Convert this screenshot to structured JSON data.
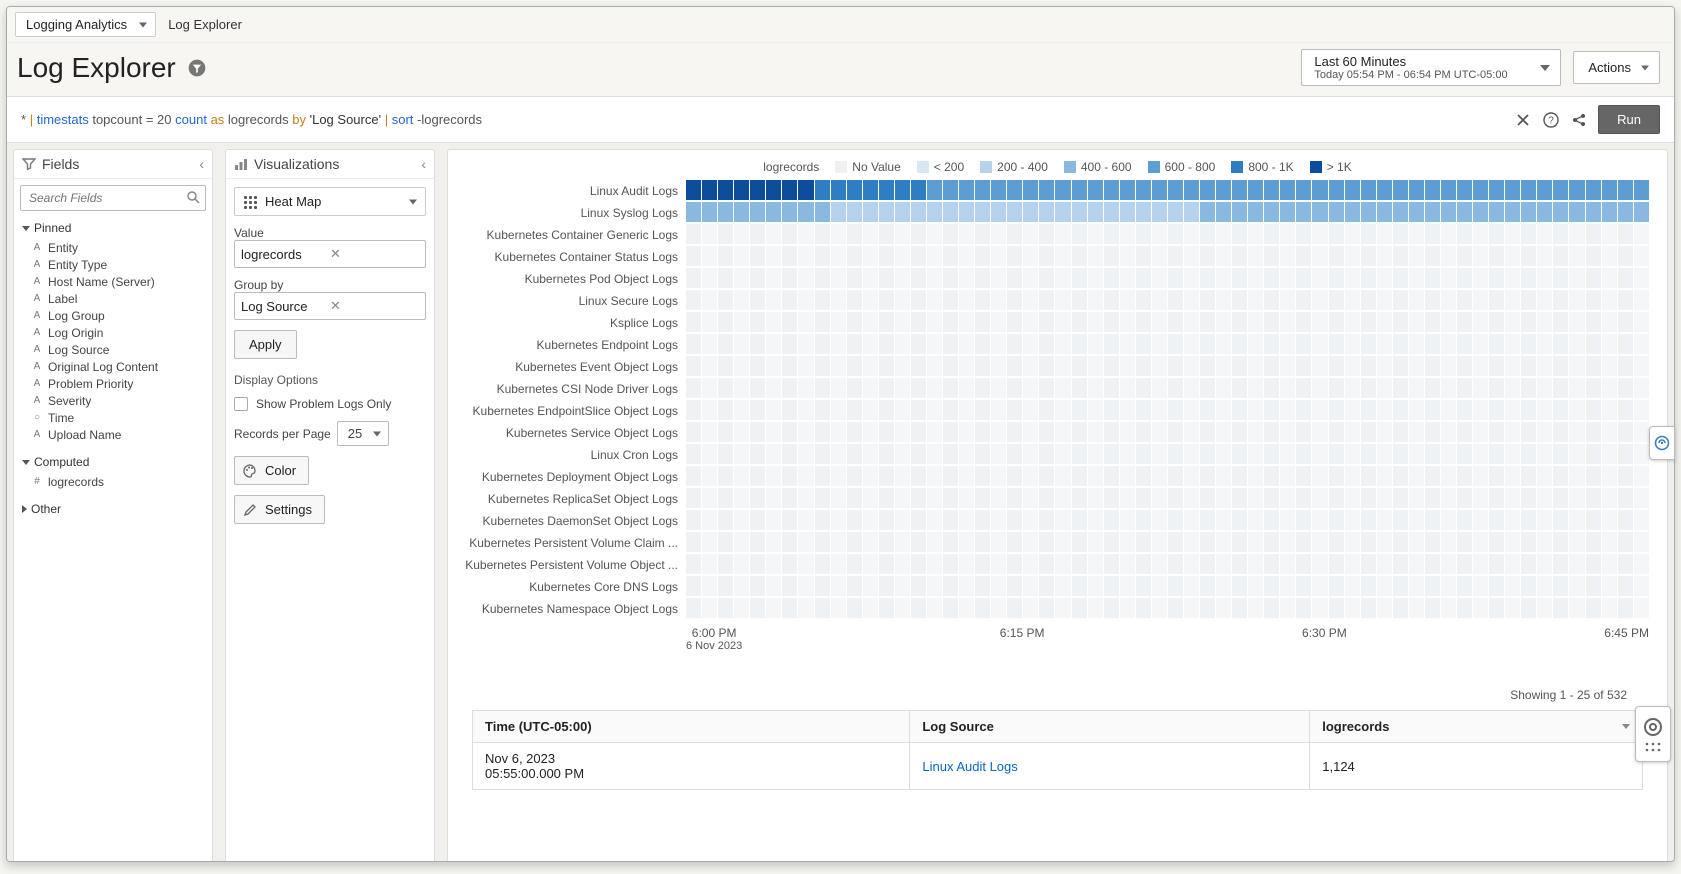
{
  "nav": {
    "selector": "Logging Analytics",
    "breadcrumb": "Log Explorer"
  },
  "header": {
    "title": "Log Explorer",
    "time_label": "Last 60 Minutes",
    "time_sub": "Today 05:54 PM - 06:54 PM UTC-05:00",
    "actions_btn": "Actions",
    "run": "Run"
  },
  "query": {
    "star": "*",
    "pipe": "|",
    "cmd1": "timestats",
    "arg1": "topcount = 20",
    "fn": "count",
    "as": "as",
    "alias": "logrecords",
    "by": "by",
    "field": "'Log Source'",
    "cmd2": "sort",
    "arg2": "-logrecords"
  },
  "fields": {
    "panel_title": "Fields",
    "search_placeholder": "Search Fields",
    "groups": {
      "pinned": {
        "label": "Pinned",
        "items": [
          {
            "k": "A",
            "l": "Entity"
          },
          {
            "k": "A",
            "l": "Entity Type"
          },
          {
            "k": "A",
            "l": "Host Name (Server)"
          },
          {
            "k": "A",
            "l": "Label"
          },
          {
            "k": "A",
            "l": "Log Group"
          },
          {
            "k": "A",
            "l": "Log Origin"
          },
          {
            "k": "A",
            "l": "Log Source"
          },
          {
            "k": "A",
            "l": "Original Log Content"
          },
          {
            "k": "A",
            "l": "Problem Priority"
          },
          {
            "k": "A",
            "l": "Severity"
          },
          {
            "k": "○",
            "l": "Time"
          },
          {
            "k": "A",
            "l": "Upload Name"
          }
        ]
      },
      "computed": {
        "label": "Computed",
        "items": [
          {
            "k": "#",
            "l": "logrecords"
          }
        ]
      },
      "other": {
        "label": "Other"
      }
    }
  },
  "viz": {
    "panel_title": "Visualizations",
    "type": "Heat Map",
    "value_label": "Value",
    "value": "logrecords",
    "group_label": "Group by",
    "group": "Log Source",
    "apply": "Apply",
    "display_options": "Display Options",
    "show_problem": "Show Problem Logs Only",
    "rpp_label": "Records per Page",
    "rpp_value": "25",
    "color_btn": "Color",
    "settings_btn": "Settings"
  },
  "chart": {
    "legend_title": "logrecords",
    "legend": [
      {
        "l": "No Value",
        "c": "#f0f0f0"
      },
      {
        "l": "< 200",
        "c": "#d7e7f4"
      },
      {
        "l": "200 - 400",
        "c": "#b5d3ec"
      },
      {
        "l": "400 - 600",
        "c": "#8ab9df"
      },
      {
        "l": "600 - 800",
        "c": "#5d9ed2"
      },
      {
        "l": "800 - 1K",
        "c": "#2f7ec1"
      },
      {
        "l": "> 1K",
        "c": "#0b4f9c"
      }
    ],
    "empty_color": "#eef2f4",
    "n_cols": 60,
    "rows": [
      {
        "label": "Linux Audit Logs",
        "cells": [
          6,
          6,
          6,
          6,
          6,
          6,
          6,
          6,
          5,
          5,
          5,
          5,
          5,
          5,
          5,
          4,
          4,
          4,
          4,
          4,
          4,
          4,
          4,
          4,
          4,
          4,
          4,
          4,
          4,
          4,
          4,
          4,
          4,
          4,
          4,
          4,
          4,
          4,
          4,
          4,
          4,
          4,
          4,
          4,
          4,
          4,
          4,
          4,
          4,
          4,
          4,
          4,
          4,
          4,
          4,
          4,
          4,
          4,
          4,
          4
        ]
      },
      {
        "label": "Linux Syslog Logs",
        "cells": [
          3,
          3,
          3,
          3,
          3,
          3,
          3,
          3,
          3,
          2,
          2,
          2,
          2,
          2,
          2,
          2,
          2,
          2,
          2,
          2,
          2,
          2,
          2,
          2,
          2,
          2,
          2,
          2,
          2,
          2,
          2,
          2,
          3,
          3,
          3,
          3,
          3,
          3,
          3,
          3,
          3,
          3,
          3,
          3,
          3,
          3,
          3,
          3,
          3,
          3,
          3,
          3,
          3,
          3,
          3,
          3,
          3,
          3,
          3,
          3
        ]
      },
      {
        "label": "Kubernetes Container Generic Logs",
        "cells": null
      },
      {
        "label": "Kubernetes Container Status Logs",
        "cells": null
      },
      {
        "label": "Kubernetes Pod Object Logs",
        "cells": null
      },
      {
        "label": "Linux Secure Logs",
        "cells": null
      },
      {
        "label": "Ksplice Logs",
        "cells": null
      },
      {
        "label": "Kubernetes Endpoint Logs",
        "cells": null
      },
      {
        "label": "Kubernetes Event Object Logs",
        "cells": null
      },
      {
        "label": "Kubernetes CSI Node Driver Logs",
        "cells": null
      },
      {
        "label": "Kubernetes EndpointSlice Object Logs",
        "cells": null
      },
      {
        "label": "Kubernetes Service Object Logs",
        "cells": null
      },
      {
        "label": "Linux Cron Logs",
        "cells": null
      },
      {
        "label": "Kubernetes Deployment Object Logs",
        "cells": null
      },
      {
        "label": "Kubernetes ReplicaSet Object Logs",
        "cells": null
      },
      {
        "label": "Kubernetes DaemonSet Object Logs",
        "cells": null
      },
      {
        "label": "Kubernetes Persistent Volume Claim ...",
        "cells": null
      },
      {
        "label": "Kubernetes Persistent Volume Object ...",
        "cells": null
      },
      {
        "label": "Kubernetes Core DNS Logs",
        "cells": null
      },
      {
        "label": "Kubernetes Namespace Object Logs",
        "cells": null
      }
    ],
    "xticks": [
      {
        "l1": "6:00 PM",
        "l2": "6 Nov 2023"
      },
      {
        "l1": "6:15 PM",
        "l2": ""
      },
      {
        "l1": "6:30 PM",
        "l2": ""
      },
      {
        "l1": "6:45 PM",
        "l2": ""
      }
    ]
  },
  "table": {
    "summary": "Showing 1 - 25 of 532",
    "columns": [
      "Time (UTC-05:00)",
      "Log Source",
      "logrecords"
    ],
    "row1": {
      "time_l1": "Nov 6, 2023",
      "time_l2": "05:55:00.000 PM",
      "source": "Linux Audit Logs",
      "val": "1,124"
    }
  }
}
